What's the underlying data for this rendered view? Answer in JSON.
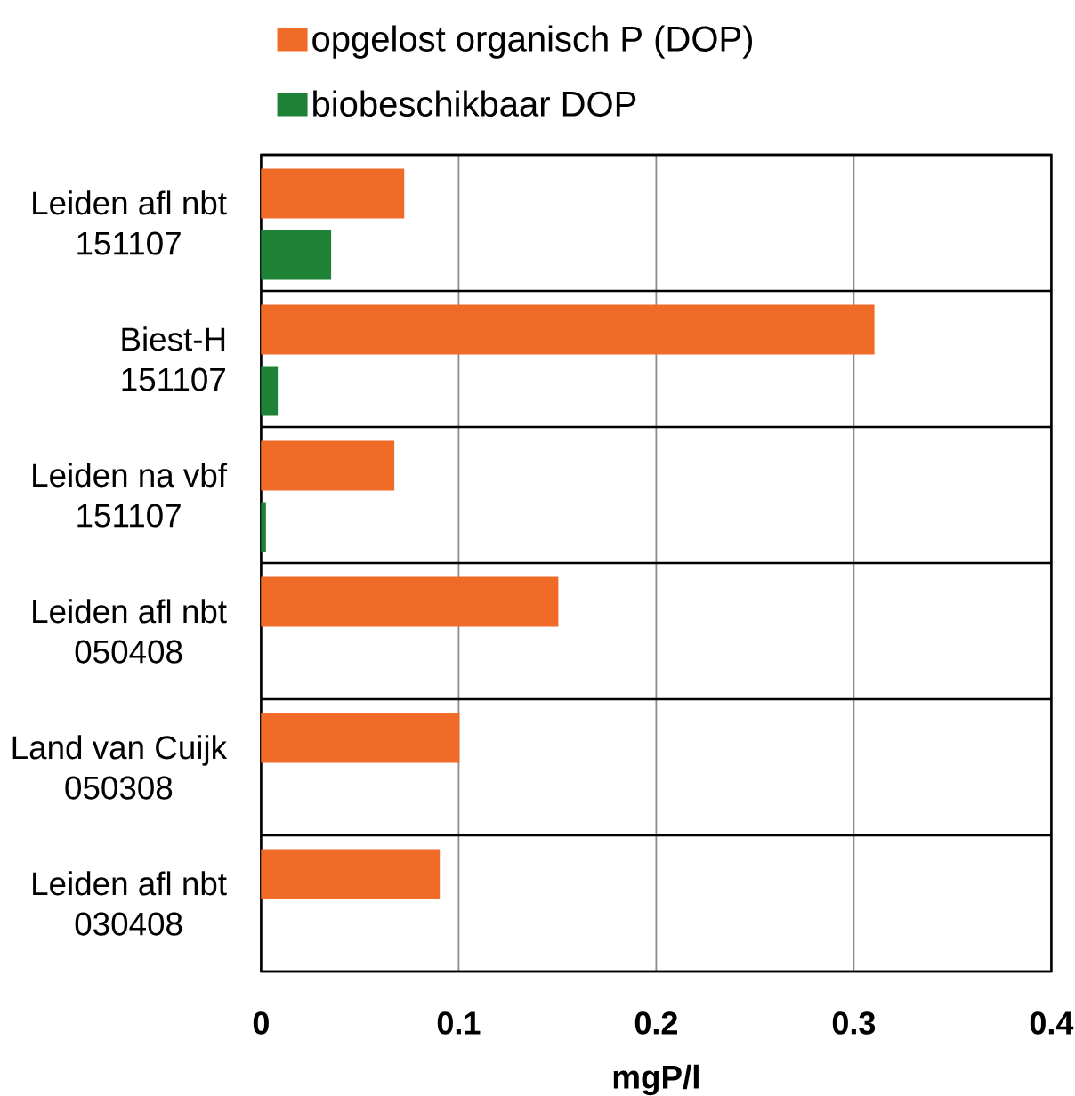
{
  "chart_data": {
    "type": "bar",
    "orientation": "horizontal",
    "categories": [
      "Leiden afl nbt 151107",
      "Biest-H 151107",
      "Leiden na vbf 151107",
      "Leiden afl nbt 050408",
      "Land van Cuijk 050308",
      "Leiden afl nbt 030408"
    ],
    "series": [
      {
        "name": "opgelost organisch P (DOP)",
        "color": "#f06a28",
        "values": [
          0.072,
          0.31,
          0.067,
          0.15,
          0.1,
          0.09
        ]
      },
      {
        "name": "biobeschikbaar DOP",
        "color": "#1e8236",
        "values": [
          0.035,
          0.008,
          0.002,
          null,
          null,
          null
        ]
      }
    ],
    "xlabel": "mgP/l",
    "xlim": [
      0,
      0.4
    ],
    "xticks": [
      0,
      0.1,
      0.2,
      0.3,
      0.4
    ],
    "grid": true,
    "legend": "top"
  }
}
